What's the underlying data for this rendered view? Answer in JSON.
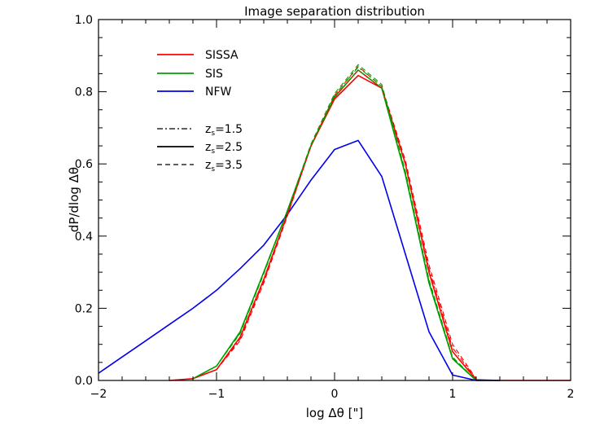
{
  "chart_data": {
    "type": "line",
    "title": "Image separation distribution",
    "xlabel": "log Δθ [\"]",
    "ylabel": "dP/dlog Δθ",
    "xlim": [
      -2,
      2
    ],
    "ylim": [
      0,
      1.0
    ],
    "x_ticks": [
      -2,
      -1,
      0,
      1,
      2
    ],
    "x_tick_labels": [
      "−2",
      "−1",
      "0",
      "1",
      "2"
    ],
    "y_ticks": [
      0,
      0.2,
      0.4,
      0.6,
      0.8,
      1.0
    ],
    "y_tick_labels": [
      "0.0",
      "0.2",
      "0.4",
      "0.6",
      "0.8",
      "1.0"
    ],
    "grid": false,
    "legend_placement": "top-left",
    "series": [
      {
        "name": "SISSA",
        "color": "#ff0000",
        "dash": "solid",
        "x": [
          -1.4,
          -1.2,
          -1.0,
          -0.8,
          -0.6,
          -0.4,
          -0.2,
          0.0,
          0.2,
          0.4,
          0.6,
          0.8,
          1.0,
          1.2,
          1.4,
          1.6,
          2.0
        ],
        "y": [
          0.0,
          0.005,
          0.03,
          0.12,
          0.28,
          0.46,
          0.65,
          0.78,
          0.845,
          0.81,
          0.6,
          0.3,
          0.08,
          0.002,
          0.0,
          0.0,
          0.0
        ]
      },
      {
        "name": "SIS",
        "color": "#00a000",
        "dash": "solid",
        "x": [
          -1.2,
          -1.0,
          -0.8,
          -0.6,
          -0.4,
          -0.2,
          0.0,
          0.2,
          0.4,
          0.6,
          0.8,
          1.0,
          1.2,
          1.4
        ],
        "y": [
          0.005,
          0.04,
          0.135,
          0.3,
          0.47,
          0.65,
          0.785,
          0.86,
          0.81,
          0.57,
          0.27,
          0.06,
          0.0,
          0.0
        ]
      },
      {
        "name": "NFW",
        "color": "#0000ee",
        "dash": "solid",
        "x": [
          -2.0,
          -1.8,
          -1.6,
          -1.4,
          -1.2,
          -1.0,
          -0.8,
          -0.6,
          -0.4,
          -0.2,
          0.0,
          0.2,
          0.4,
          0.6,
          0.8,
          1.0,
          1.2,
          1.4
        ],
        "y": [
          0.02,
          0.065,
          0.11,
          0.155,
          0.2,
          0.25,
          0.31,
          0.375,
          0.46,
          0.555,
          0.64,
          0.665,
          0.565,
          0.35,
          0.135,
          0.015,
          0.0,
          0.0
        ]
      },
      {
        "name": "",
        "color": "#ff0000",
        "dash": "dash",
        "x": [
          -1.2,
          -1.0,
          -0.8,
          -0.6,
          -0.4,
          -0.2,
          0.0,
          0.2,
          0.4,
          0.6,
          0.8,
          1.0,
          1.2
        ],
        "y": [
          0.005,
          0.03,
          0.11,
          0.27,
          0.455,
          0.65,
          0.79,
          0.87,
          0.815,
          0.61,
          0.32,
          0.1,
          0.005
        ]
      },
      {
        "name": "",
        "color": "#ff0000",
        "dash": "dashdot",
        "x": [
          -1.2,
          -1.0,
          -0.8,
          -0.6,
          -0.4,
          -0.2,
          0.0,
          0.2,
          0.4,
          0.6,
          0.8,
          1.0,
          1.2
        ],
        "y": [
          0.005,
          0.03,
          0.115,
          0.275,
          0.46,
          0.65,
          0.785,
          0.86,
          0.81,
          0.6,
          0.31,
          0.09,
          0.004
        ]
      },
      {
        "name": "",
        "color": "#00a000",
        "dash": "dash",
        "x": [
          -1.2,
          -1.0,
          -0.8,
          -0.6,
          -0.4,
          -0.2,
          0.0,
          0.2,
          0.4,
          0.6,
          0.8,
          1.0,
          1.2
        ],
        "y": [
          0.005,
          0.04,
          0.13,
          0.295,
          0.47,
          0.655,
          0.795,
          0.875,
          0.82,
          0.58,
          0.28,
          0.065,
          0.0
        ]
      },
      {
        "name": "",
        "color": "#00a000",
        "dash": "dashdot",
        "x": [
          -1.2,
          -1.0,
          -0.8,
          -0.6,
          -0.4,
          -0.2,
          0.0,
          0.2,
          0.4,
          0.6,
          0.8,
          1.0,
          1.2
        ],
        "y": [
          0.005,
          0.04,
          0.132,
          0.298,
          0.47,
          0.652,
          0.79,
          0.868,
          0.815,
          0.575,
          0.275,
          0.062,
          0.0
        ]
      }
    ],
    "legend": [
      {
        "label": "SISSA",
        "style": "solid",
        "color": "#ff0000"
      },
      {
        "label": "SIS",
        "style": "solid",
        "color": "#00a000"
      },
      {
        "label": "NFW",
        "style": "solid",
        "color": "#0000ee"
      },
      {
        "label": "z",
        "sub": "s",
        "tail": "=1.5",
        "style": "dashdot",
        "color": "#000000"
      },
      {
        "label": "z",
        "sub": "s",
        "tail": "=2.5",
        "style": "solid",
        "color": "#000000"
      },
      {
        "label": "z",
        "sub": "s",
        "tail": "=3.5",
        "style": "dash",
        "color": "#000000"
      }
    ]
  }
}
